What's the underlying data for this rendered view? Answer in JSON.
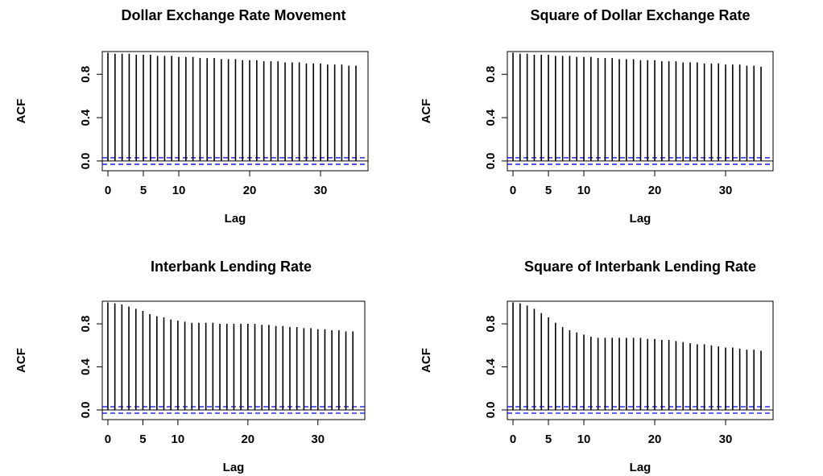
{
  "chart_data": [
    {
      "type": "bar",
      "title": "Dollar Exchange Rate Movement",
      "x_label": "Lag",
      "y_label": "ACF",
      "x": [
        0,
        1,
        2,
        3,
        4,
        5,
        6,
        7,
        8,
        9,
        10,
        11,
        12,
        13,
        14,
        15,
        16,
        17,
        18,
        19,
        20,
        21,
        22,
        23,
        24,
        25,
        26,
        27,
        28,
        29,
        30,
        31,
        32,
        33,
        34,
        35
      ],
      "values": [
        1,
        0.99,
        0.99,
        0.99,
        0.98,
        0.98,
        0.98,
        0.97,
        0.97,
        0.97,
        0.96,
        0.96,
        0.96,
        0.95,
        0.95,
        0.95,
        0.94,
        0.94,
        0.94,
        0.93,
        0.93,
        0.93,
        0.92,
        0.92,
        0.92,
        0.91,
        0.91,
        0.91,
        0.9,
        0.9,
        0.9,
        0.89,
        0.89,
        0.89,
        0.88,
        0.88
      ],
      "color": "#000000",
      "bounds": [
        -0.03,
        0.03
      ],
      "bound_color": "#0000ff",
      "xlim": [
        -0.8,
        36.7
      ],
      "xticks": [
        0,
        5,
        10,
        20,
        30
      ],
      "ylim": [
        -0.09,
        1.01
      ],
      "yticks": [
        {
          "value": 0,
          "label": "0.0"
        },
        0.4,
        0.8
      ],
      "grid": false
    },
    {
      "type": "bar",
      "title": "Square of Dollar Exchange Rate",
      "x_label": "Lag",
      "y_label": "ACF",
      "x": [
        0,
        1,
        2,
        3,
        4,
        5,
        6,
        7,
        8,
        9,
        10,
        11,
        12,
        13,
        14,
        15,
        16,
        17,
        18,
        19,
        20,
        21,
        22,
        23,
        24,
        25,
        26,
        27,
        28,
        29,
        30,
        31,
        32,
        33,
        34,
        35
      ],
      "values": [
        1,
        0.99,
        0.99,
        0.98,
        0.98,
        0.98,
        0.97,
        0.97,
        0.97,
        0.96,
        0.96,
        0.96,
        0.95,
        0.95,
        0.95,
        0.94,
        0.94,
        0.94,
        0.93,
        0.93,
        0.93,
        0.92,
        0.92,
        0.92,
        0.91,
        0.91,
        0.91,
        0.9,
        0.9,
        0.9,
        0.89,
        0.89,
        0.89,
        0.88,
        0.88,
        0.87
      ],
      "color": "#000000",
      "bounds": [
        -0.03,
        0.03
      ],
      "bound_color": "#0000ff",
      "xlim": [
        -0.8,
        36.7
      ],
      "xticks": [
        0,
        5,
        10,
        20,
        30
      ],
      "ylim": [
        -0.09,
        1.01
      ],
      "yticks": [
        {
          "value": 0,
          "label": "0.0"
        },
        0.4,
        0.8
      ],
      "grid": false
    },
    {
      "type": "bar",
      "title": "Interbank Lending Rate",
      "x_label": "Lag",
      "y_label": "ACF",
      "x": [
        0,
        1,
        2,
        3,
        4,
        5,
        6,
        7,
        8,
        9,
        10,
        11,
        12,
        13,
        14,
        15,
        16,
        17,
        18,
        19,
        20,
        21,
        22,
        23,
        24,
        25,
        26,
        27,
        28,
        29,
        30,
        31,
        32,
        33,
        34,
        35
      ],
      "values": [
        1,
        0.99,
        0.98,
        0.96,
        0.94,
        0.92,
        0.89,
        0.87,
        0.86,
        0.84,
        0.83,
        0.82,
        0.81,
        0.81,
        0.81,
        0.81,
        0.8,
        0.8,
        0.8,
        0.8,
        0.8,
        0.8,
        0.79,
        0.79,
        0.78,
        0.78,
        0.77,
        0.77,
        0.76,
        0.76,
        0.75,
        0.75,
        0.74,
        0.74,
        0.73,
        0.73
      ],
      "color": "#000000",
      "bounds": [
        -0.03,
        0.03
      ],
      "bound_color": "#0000ff",
      "xlim": [
        -0.8,
        36.7
      ],
      "xticks": [
        0,
        5,
        10,
        20,
        30
      ],
      "ylim": [
        -0.09,
        1.01
      ],
      "yticks": [
        {
          "value": 0,
          "label": "0.0"
        },
        0.4,
        0.8
      ],
      "grid": false
    },
    {
      "type": "bar",
      "title": "Square of Interbank Lending Rate",
      "x_label": "Lag",
      "y_label": "ACF",
      "x": [
        0,
        1,
        2,
        3,
        4,
        5,
        6,
        7,
        8,
        9,
        10,
        11,
        12,
        13,
        14,
        15,
        16,
        17,
        18,
        19,
        20,
        21,
        22,
        23,
        24,
        25,
        26,
        27,
        28,
        29,
        30,
        31,
        32,
        33,
        34,
        35
      ],
      "values": [
        1,
        0.99,
        0.97,
        0.94,
        0.9,
        0.86,
        0.81,
        0.77,
        0.74,
        0.72,
        0.7,
        0.68,
        0.67,
        0.67,
        0.67,
        0.67,
        0.67,
        0.67,
        0.67,
        0.66,
        0.66,
        0.65,
        0.65,
        0.64,
        0.63,
        0.62,
        0.61,
        0.61,
        0.6,
        0.59,
        0.58,
        0.58,
        0.57,
        0.56,
        0.56,
        0.55
      ],
      "color": "#000000",
      "bounds": [
        -0.03,
        0.03
      ],
      "bound_color": "#0000ff",
      "xlim": [
        -0.8,
        36.7
      ],
      "xticks": [
        0,
        5,
        10,
        20,
        30
      ],
      "ylim": [
        -0.09,
        1.01
      ],
      "yticks": [
        {
          "value": 0,
          "label": "0.0"
        },
        0.4,
        0.8
      ],
      "grid": false
    }
  ]
}
